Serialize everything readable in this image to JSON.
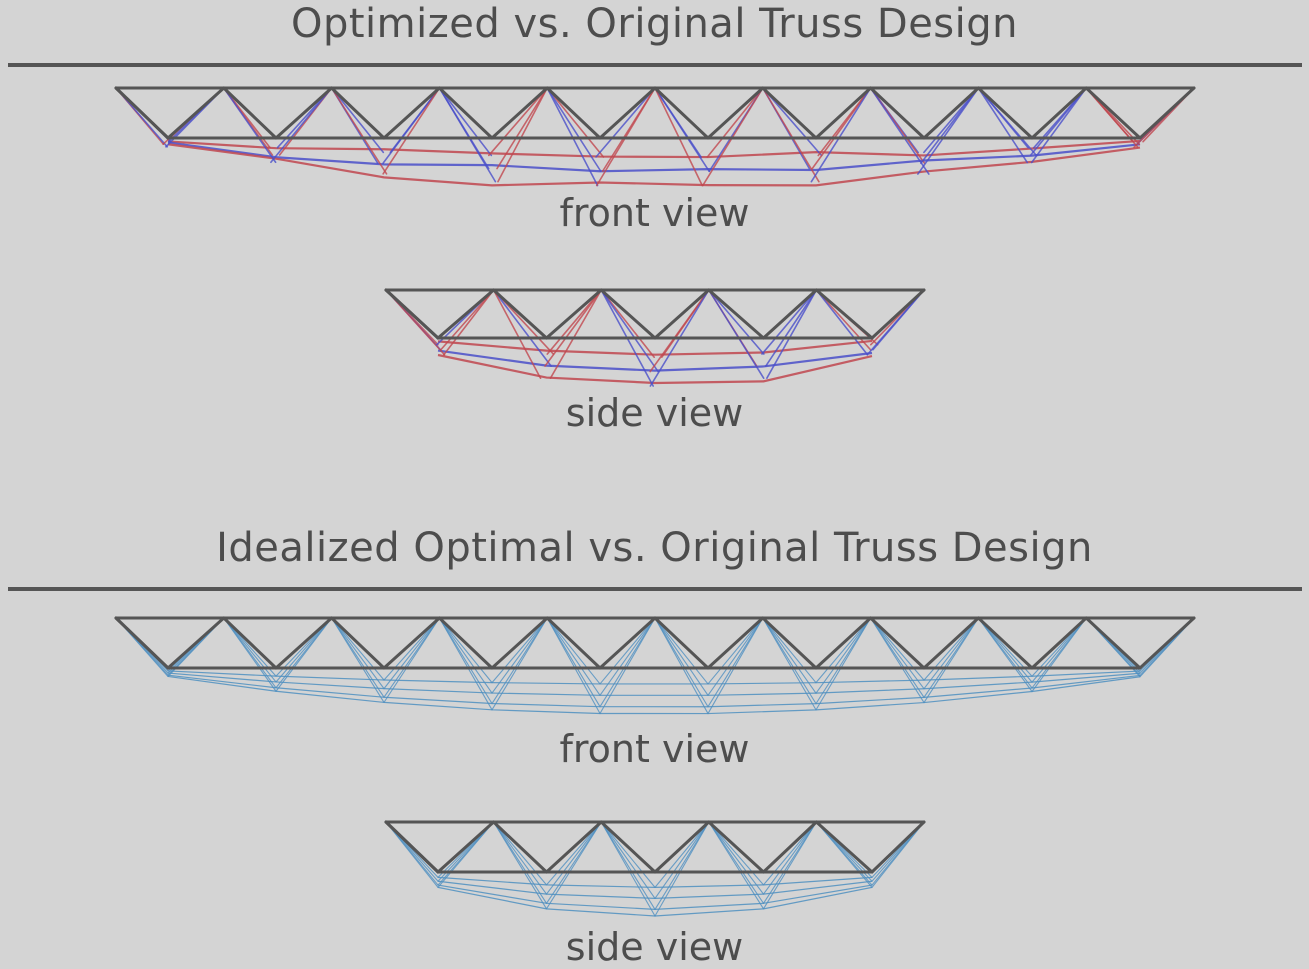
{
  "sections": [
    {
      "title": "Optimized vs. Original Truss Design",
      "front_caption": "front view",
      "side_caption": "side view",
      "overlay_variant": "optimized",
      "overlay_colors": [
        "#c0474f",
        "#4a4fc9"
      ]
    },
    {
      "title": "Idealized Optimal vs. Original Truss Design",
      "front_caption": "front view",
      "side_caption": "side view",
      "overlay_variant": "idealized",
      "overlay_colors": [
        "#4d8fc0"
      ]
    }
  ],
  "colors": {
    "background": "#d4d4d4",
    "original_truss": "#555555",
    "text": "#4d4d4d"
  }
}
